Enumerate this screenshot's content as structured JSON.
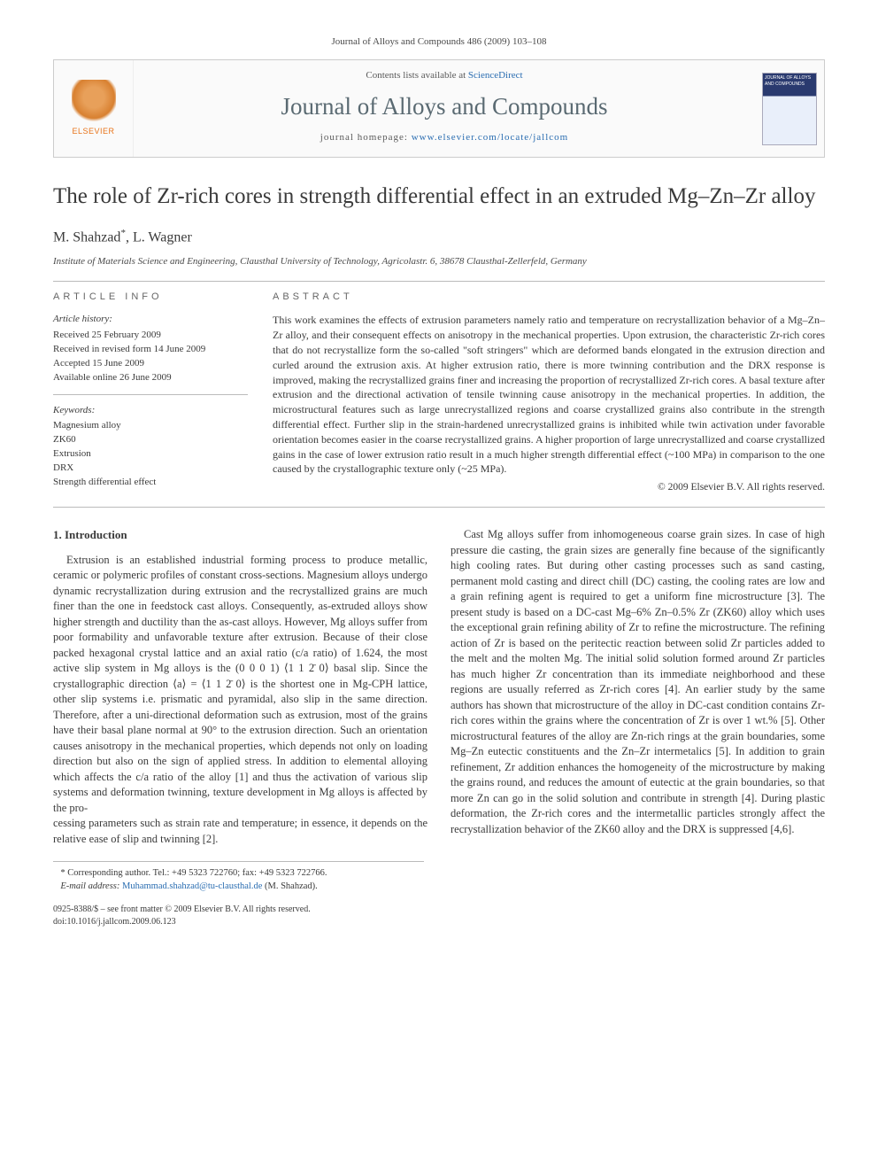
{
  "running_head": "Journal of Alloys and Compounds 486 (2009) 103–108",
  "header": {
    "elsevier": "ELSEVIER",
    "contents_prefix": "Contents lists available at ",
    "contents_link": "ScienceDirect",
    "journal_name": "Journal of Alloys and Compounds",
    "homepage_prefix": "journal homepage: ",
    "homepage_url": "www.elsevier.com/locate/jallcom",
    "cover_text": "JOURNAL OF ALLOYS AND COMPOUNDS"
  },
  "title": "The role of Zr-rich cores in strength differential effect in an extruded Mg–Zn–Zr alloy",
  "authors_html": "M. Shahzad*, L. Wagner",
  "authors": [
    {
      "name": "M. Shahzad",
      "corresp": true
    },
    {
      "name": "L. Wagner",
      "corresp": false
    }
  ],
  "affiliation": "Institute of Materials Science and Engineering, Clausthal University of Technology, Agricolastr. 6, 38678 Clausthal-Zellerfeld, Germany",
  "info": {
    "heading": "article info",
    "history_label": "Article history:",
    "history": [
      "Received 25 February 2009",
      "Received in revised form 14 June 2009",
      "Accepted 15 June 2009",
      "Available online 26 June 2009"
    ],
    "keywords_label": "Keywords:",
    "keywords": [
      "Magnesium alloy",
      "ZK60",
      "Extrusion",
      "DRX",
      "Strength differential effect"
    ]
  },
  "abstract": {
    "heading": "abstract",
    "text": "This work examines the effects of extrusion parameters namely ratio and temperature on recrystallization behavior of a Mg–Zn–Zr alloy, and their consequent effects on anisotropy in the mechanical properties. Upon extrusion, the characteristic Zr-rich cores that do not recrystallize form the so-called \"soft stringers\" which are deformed bands elongated in the extrusion direction and curled around the extrusion axis. At higher extrusion ratio, there is more twinning contribution and the DRX response is improved, making the recrystallized grains finer and increasing the proportion of recrystallized Zr-rich cores. A basal texture after extrusion and the directional activation of tensile twinning cause anisotropy in the mechanical properties. In addition, the microstructural features such as large unrecrystallized regions and coarse crystallized grains also contribute in the strength differential effect. Further slip in the strain-hardened unrecrystallized grains is inhibited while twin activation under favorable orientation becomes easier in the coarse recrystallized grains. A higher proportion of large unrecrystallized and coarse crystallized gains in the case of lower extrusion ratio result in a much higher strength differential effect (~100 MPa) in comparison to the one caused by the crystallographic texture only (~25 MPa).",
    "copyright": "© 2009 Elsevier B.V. All rights reserved."
  },
  "section1": {
    "heading": "1. Introduction",
    "p1": "Extrusion is an established industrial forming process to produce metallic, ceramic or polymeric profiles of constant cross-sections. Magnesium alloys undergo dynamic recrystallization during extrusion and the recrystallized grains are much finer than the one in feedstock cast alloys. Consequently, as-extruded alloys show higher strength and ductility than the as-cast alloys. However, Mg alloys suffer from poor formability and unfavorable texture after extrusion. Because of their close packed hexagonal crystal lattice and an axial ratio (c/a ratio) of 1.624, the most active slip system in Mg alloys is the (0 0 0 1) ⟨1 1 2̄ 0⟩ basal slip. Since the crystallographic direction ⟨a⟩ = ⟨1 1 2̄ 0⟩ is the shortest one in Mg-CPH lattice, other slip systems i.e. prismatic and pyramidal, also slip in the same direction. Therefore, after a uni-directional deformation such as extrusion, most of the grains have their basal plane normal at 90° to the extrusion direction. Such an orientation causes anisotropy in the mechanical properties, which depends not only on loading direction but also on the sign of applied stress. In addition to elemental alloying which affects the c/a ratio of the alloy [1] and thus the activation of various slip systems and deformation twinning, texture development in Mg alloys is affected by the pro-",
    "p1b": "cessing parameters such as strain rate and temperature; in essence, it depends on the relative ease of slip and twinning [2].",
    "p2": "Cast Mg alloys suffer from inhomogeneous coarse grain sizes. In case of high pressure die casting, the grain sizes are generally fine because of the significantly high cooling rates. But during other casting processes such as sand casting, permanent mold casting and direct chill (DC) casting, the cooling rates are low and a grain refining agent is required to get a uniform fine microstructure [3]. The present study is based on a DC-cast Mg–6% Zn–0.5% Zr (ZK60) alloy which uses the exceptional grain refining ability of Zr to refine the microstructure. The refining action of Zr is based on the peritectic reaction between solid Zr particles added to the melt and the molten Mg. The initial solid solution formed around Zr particles has much higher Zr concentration than its immediate neighborhood and these regions are usually referred as Zr-rich cores [4]. An earlier study by the same authors has shown that microstructure of the alloy in DC-cast condition contains Zr-rich cores within the grains where the concentration of Zr is over 1 wt.% [5]. Other microstructural features of the alloy are Zn-rich rings at the grain boundaries, some Mg–Zn eutectic constituents and the Zn–Zr intermetalics [5]. In addition to grain refinement, Zr addition enhances the homogeneity of the microstructure by making the grains round, and reduces the amount of eutectic at the grain boundaries, so that more Zn can go in the solid solution and contribute in strength [4]. During plastic deformation, the Zr-rich cores and the intermetallic particles strongly affect the recrystallization behavior of the ZK60 alloy and the DRX is suppressed [4,6]."
  },
  "footnote": {
    "corresp_label": "* Corresponding author. Tel.: +49 5323 722760; fax: +49 5323 722766.",
    "email_label": "E-mail address:",
    "email": "Muhammad.shahzad@tu-clausthal.de",
    "email_who": "(M. Shahzad)."
  },
  "footer": {
    "line1": "0925-8388/$ – see front matter © 2009 Elsevier B.V. All rights reserved.",
    "line2": "doi:10.1016/j.jallcom.2009.06.123"
  },
  "colors": {
    "link": "#2a6db1",
    "text": "#3a3a3a",
    "rule": "#bbbbbb",
    "elsevier_orange": "#e8741a"
  }
}
